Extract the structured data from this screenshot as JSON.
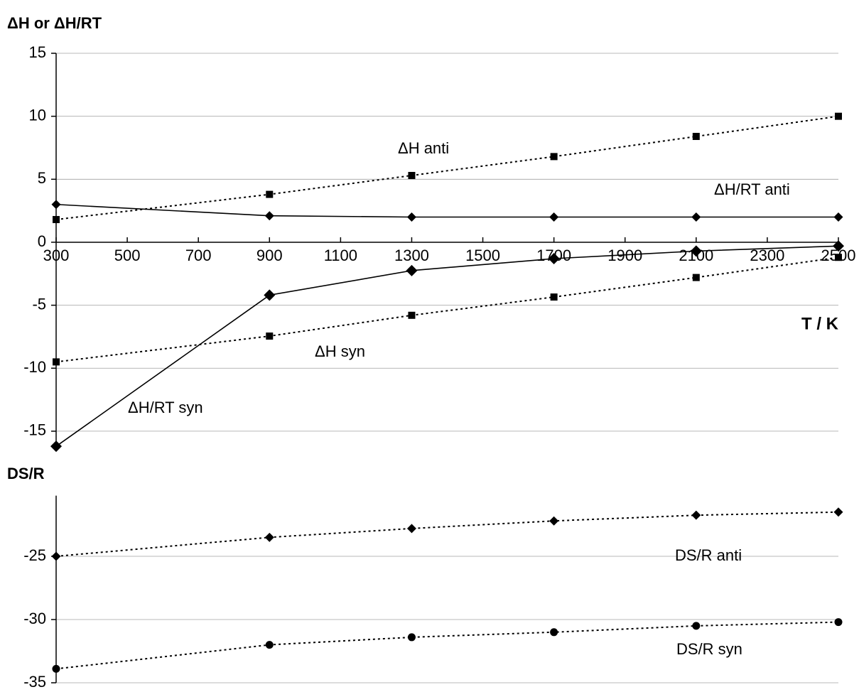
{
  "chart_data": [
    {
      "type": "line",
      "title": "ΔH or ΔH/RT",
      "x_label": "T / K",
      "x": [
        300,
        900,
        1300,
        1700,
        2100,
        2500
      ],
      "xlim": [
        300,
        2500
      ],
      "xticks": [
        300,
        500,
        700,
        900,
        1100,
        1300,
        1500,
        1700,
        1900,
        2100,
        2300,
        2500
      ],
      "ylim": [
        -16.5,
        15
      ],
      "yticks": [
        -15,
        -10,
        -5,
        0,
        5,
        10,
        15
      ],
      "grid": true,
      "series": [
        {
          "name": "ΔH anti",
          "color": "#000000",
          "marker": "square",
          "line": "dotted",
          "values": [
            1.8,
            3.8,
            5.3,
            6.8,
            8.4,
            10.0
          ]
        },
        {
          "name": "ΔH/RT anti",
          "color": "#000000",
          "marker": "diamond",
          "line": "solid",
          "values": [
            3.0,
            2.1,
            2.0,
            2.0,
            2.0,
            2.0
          ]
        },
        {
          "name": "ΔH syn",
          "color": "#000000",
          "marker": "square",
          "line": "dotted",
          "values": [
            -9.5,
            -7.45,
            -5.8,
            -4.35,
            -2.8,
            -1.2
          ]
        },
        {
          "name": "ΔH/RT syn",
          "color": "#000000",
          "marker": "diamond",
          "line": "solid",
          "values": [
            -16.2,
            -4.2,
            -2.25,
            -1.3,
            -0.7,
            -0.3
          ]
        }
      ]
    },
    {
      "type": "line",
      "title": "DS/R",
      "x": [
        300,
        900,
        1300,
        1700,
        2100,
        2500
      ],
      "xlim": [
        300,
        2500
      ],
      "ylim": [
        -35,
        -20.2
      ],
      "yticks": [
        -35,
        -30,
        -25
      ],
      "grid": true,
      "series": [
        {
          "name": "DS/R anti",
          "color": "#000000",
          "marker": "diamond",
          "line": "dotted",
          "values": [
            -25.0,
            -23.5,
            -22.8,
            -22.2,
            -21.75,
            -21.5
          ]
        },
        {
          "name": "DS/R syn",
          "color": "#000000",
          "marker": "circle",
          "line": "dotted",
          "values": [
            -33.9,
            -32.0,
            -31.4,
            -31.0,
            -30.5,
            -30.2
          ]
        }
      ]
    }
  ]
}
